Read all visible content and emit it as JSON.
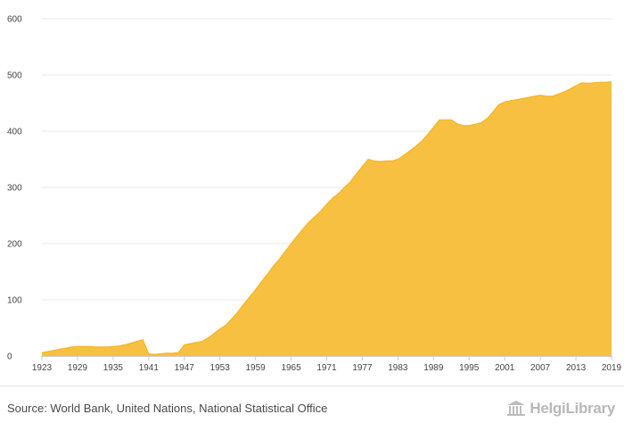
{
  "chart_data": {
    "type": "area",
    "title": "",
    "xlabel": "",
    "ylabel": "",
    "ylim": [
      0,
      600
    ],
    "xlim": [
      1923,
      2019
    ],
    "y_ticks": [
      0,
      100,
      200,
      300,
      400,
      500,
      600
    ],
    "x_ticks": [
      1923,
      1929,
      1935,
      1941,
      1947,
      1953,
      1959,
      1965,
      1971,
      1977,
      1983,
      1989,
      1995,
      2001,
      2007,
      2013,
      2019
    ],
    "grid": true,
    "fill_color": "#f8c040",
    "x": [
      1923,
      1924,
      1925,
      1926,
      1927,
      1928,
      1929,
      1930,
      1931,
      1932,
      1933,
      1934,
      1935,
      1936,
      1937,
      1938,
      1939,
      1940,
      1941,
      1942,
      1943,
      1944,
      1945,
      1946,
      1947,
      1948,
      1949,
      1950,
      1951,
      1952,
      1953,
      1954,
      1955,
      1956,
      1957,
      1958,
      1959,
      1960,
      1961,
      1962,
      1963,
      1964,
      1965,
      1966,
      1967,
      1968,
      1969,
      1970,
      1971,
      1972,
      1973,
      1974,
      1975,
      1976,
      1977,
      1978,
      1979,
      1980,
      1981,
      1982,
      1983,
      1984,
      1985,
      1986,
      1987,
      1988,
      1989,
      1990,
      1991,
      1992,
      1993,
      1994,
      1995,
      1996,
      1997,
      1998,
      1999,
      2000,
      2001,
      2002,
      2003,
      2004,
      2005,
      2006,
      2007,
      2008,
      2009,
      2010,
      2011,
      2012,
      2013,
      2014,
      2015,
      2016,
      2017,
      2018,
      2019
    ],
    "values": [
      6,
      8,
      10,
      12,
      14,
      16,
      17,
      17,
      17,
      16,
      16,
      16,
      17,
      18,
      20,
      23,
      26,
      29,
      4,
      3,
      4,
      5,
      5,
      6,
      20,
      22,
      24,
      26,
      32,
      40,
      48,
      55,
      66,
      78,
      92,
      105,
      118,
      132,
      145,
      160,
      172,
      186,
      200,
      213,
      226,
      238,
      248,
      258,
      270,
      281,
      289,
      300,
      310,
      324,
      337,
      350,
      347,
      346,
      347,
      347,
      350,
      357,
      365,
      373,
      382,
      394,
      407,
      420,
      420,
      420,
      413,
      410,
      410,
      412,
      415,
      422,
      434,
      447,
      452,
      454,
      456,
      458,
      460,
      462,
      464,
      462,
      462,
      466,
      470,
      475,
      481,
      486,
      485,
      486,
      487,
      487,
      488
    ]
  },
  "footer": {
    "source": "Source: World Bank, United Nations, National Statistical Office",
    "logo": "HelgiLibrary"
  }
}
